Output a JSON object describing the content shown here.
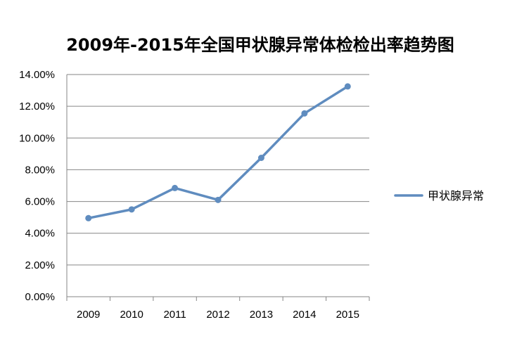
{
  "chart_data": {
    "type": "line",
    "title": "2009年-2015年全国甲状腺异常体检检出率趋势图",
    "xlabel": "",
    "ylabel": "",
    "categories": [
      "2009",
      "2010",
      "2011",
      "2012",
      "2013",
      "2014",
      "2015"
    ],
    "series": [
      {
        "name": "甲状腺异常",
        "values": [
          4.95,
          5.5,
          6.85,
          6.1,
          8.75,
          11.55,
          13.25
        ],
        "color": "#5f8cbf"
      }
    ],
    "ylim": [
      0,
      14
    ],
    "yticks": [
      "0.00%",
      "2.00%",
      "4.00%",
      "6.00%",
      "8.00%",
      "10.00%",
      "12.00%",
      "14.00%"
    ],
    "grid": true,
    "legend_position": "right"
  }
}
